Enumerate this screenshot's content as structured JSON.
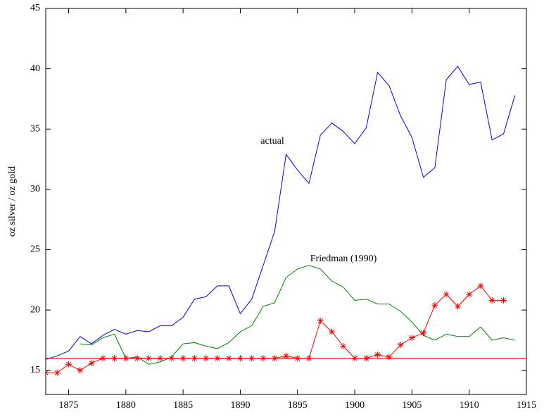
{
  "chart_data": {
    "type": "line",
    "y_label": "oz silver / oz gold",
    "x": [
      1873,
      1874,
      1875,
      1876,
      1877,
      1878,
      1879,
      1880,
      1881,
      1882,
      1883,
      1884,
      1885,
      1886,
      1887,
      1888,
      1889,
      1890,
      1891,
      1892,
      1893,
      1894,
      1895,
      1896,
      1897,
      1898,
      1899,
      1900,
      1901,
      1902,
      1903,
      1904,
      1905,
      1906,
      1907,
      1908,
      1909,
      1910,
      1911,
      1912,
      1913,
      1914
    ],
    "series": [
      {
        "name": "actual",
        "color": "#0000ff",
        "marker": "none",
        "values": [
          15.9,
          16.2,
          16.6,
          17.8,
          17.2,
          17.9,
          18.4,
          18.0,
          18.3,
          18.2,
          18.7,
          18.7,
          19.4,
          20.9,
          21.1,
          22.0,
          22.0,
          19.7,
          20.9,
          23.7,
          26.5,
          32.9,
          31.6,
          30.5,
          34.5,
          35.5,
          34.8,
          33.8,
          35.1,
          39.7,
          38.6,
          36.1,
          34.3,
          31.0,
          31.8,
          39.1,
          40.2,
          38.7,
          38.9,
          34.1,
          34.6,
          37.8
        ]
      },
      {
        "name": "Friedman (1990)",
        "color": "#008000",
        "marker": "none",
        "values": [
          null,
          null,
          null,
          17.2,
          17.1,
          17.7,
          18.0,
          16.0,
          16.1,
          15.5,
          15.7,
          16.1,
          17.2,
          17.3,
          17.0,
          16.8,
          17.3,
          18.2,
          18.7,
          20.3,
          20.6,
          22.7,
          23.4,
          23.7,
          23.4,
          22.4,
          21.9,
          20.8,
          20.9,
          20.5,
          20.5,
          19.9,
          19.0,
          17.9,
          17.5,
          18.0,
          17.8,
          17.8,
          18.6,
          17.5,
          17.7,
          17.5
        ]
      },
      {
        "color": "#ff0000",
        "marker": "star",
        "values": [
          14.8,
          14.8,
          15.5,
          15.0,
          15.6,
          16.0,
          16.0,
          16.0,
          16.0,
          16.0,
          16.0,
          16.0,
          16.0,
          16.0,
          16.0,
          16.0,
          16.0,
          16.0,
          16.0,
          16.0,
          16.0,
          16.2,
          16.0,
          16.0,
          19.1,
          18.2,
          17.0,
          16.0,
          16.0,
          16.3,
          16.1,
          17.1,
          17.7,
          18.1,
          20.4,
          21.3,
          20.3,
          21.3,
          22.0,
          20.8,
          20.8,
          null
        ]
      }
    ],
    "reference_line": {
      "value": 16,
      "color": "#ff0000"
    },
    "xlim": [
      1873,
      1915
    ],
    "ylim": [
      13,
      45
    ],
    "xticks": [
      1875,
      1880,
      1885,
      1890,
      1895,
      1900,
      1905,
      1910,
      1915
    ],
    "yticks": [
      15,
      20,
      25,
      30,
      35,
      40,
      45
    ],
    "grid": false
  }
}
